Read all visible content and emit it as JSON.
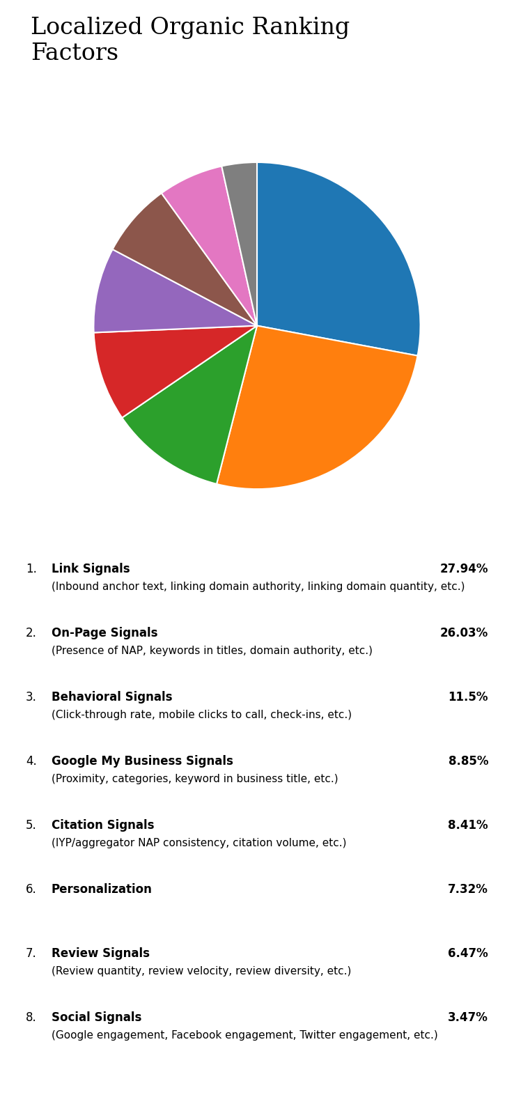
{
  "chart_data": {
    "type": "pie",
    "title": "Localized Organic Ranking\nFactors",
    "categories": [
      "Link Signals",
      "On-Page Signals",
      "Behavioral Signals",
      "Google My Business Signals",
      "Citation Signals",
      "Personalization",
      "Review Signals",
      "Social Signals"
    ],
    "values": [
      27.94,
      26.03,
      11.5,
      8.85,
      8.41,
      7.32,
      6.47,
      3.47
    ],
    "value_labels": [
      "27.94%",
      "26.03%",
      "11.5%",
      "8.85%",
      "8.41%",
      "7.32%",
      "6.47%",
      "3.47%"
    ],
    "item_numbers": [
      "1.",
      "2.",
      "3.",
      "4.",
      "5.",
      "6.",
      "7.",
      "8."
    ],
    "descriptions": [
      "(Inbound anchor text, linking domain authority, linking domain quantity, etc.)",
      "(Presence of NAP, keywords in titles, domain authority, etc.)",
      "(Click-through rate, mobile clicks to call, check-ins, etc.)",
      "(Proximity, categories, keyword in business title, etc.)",
      "(IYP/aggregator NAP consistency, citation volume, etc.)",
      null,
      "(Review quantity, review velocity, review diversity, etc.)",
      "(Google engagement, Facebook engagement, Twitter engagement, etc.)"
    ],
    "legend": false
  }
}
